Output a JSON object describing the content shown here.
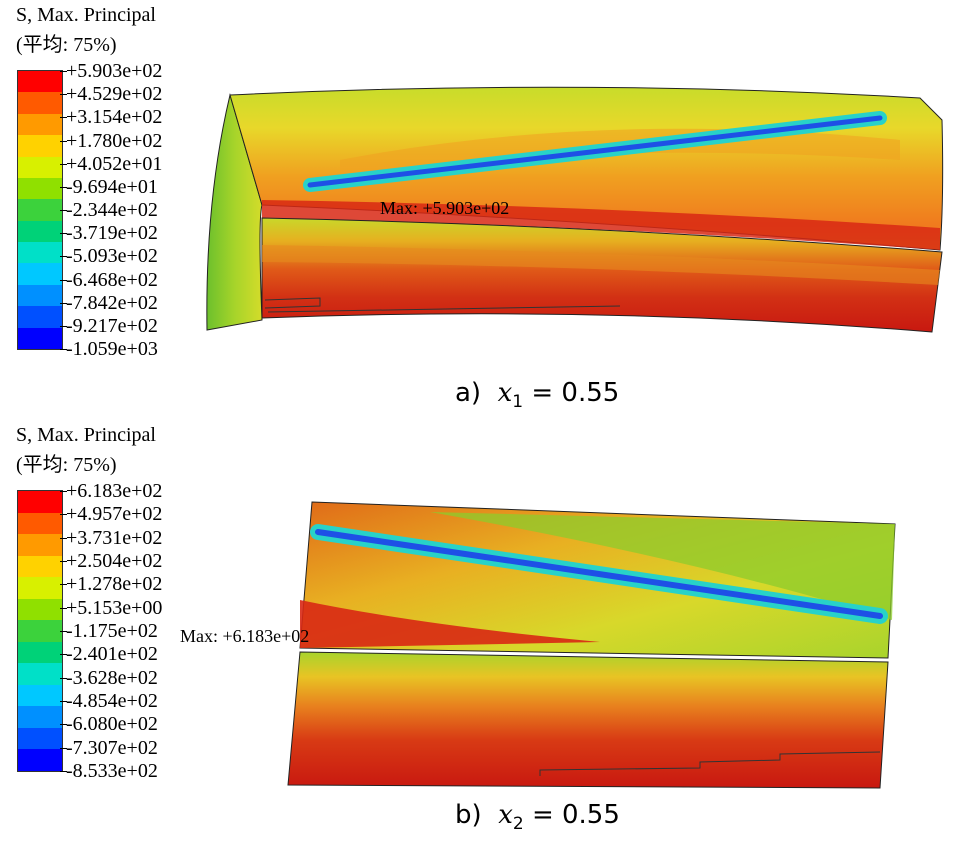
{
  "panels": [
    {
      "legend": {
        "title": "S, Max. Principal",
        "avg": "(平均: 75%)",
        "labels": [
          "+5.903e+02",
          "+4.529e+02",
          "+3.154e+02",
          "+1.780e+02",
          "+4.052e+01",
          "-9.694e+01",
          "-2.344e+02",
          "-3.719e+02",
          "-5.093e+02",
          "-6.468e+02",
          "-7.842e+02",
          "-9.217e+02",
          "-1.059e+03"
        ]
      },
      "max_label": "Max: +5.903e+02",
      "caption": {
        "prefix": "a)",
        "var": "x",
        "sub": "1",
        "rest": " = 0.55"
      }
    },
    {
      "legend": {
        "title": "S, Max. Principal",
        "avg": "(平均: 75%)",
        "labels": [
          "+6.183e+02",
          "+4.957e+02",
          "+3.731e+02",
          "+2.504e+02",
          "+1.278e+02",
          "+5.153e+00",
          "-1.175e+02",
          "-2.401e+02",
          "-3.628e+02",
          "-4.854e+02",
          "-6.080e+02",
          "-7.307e+02",
          "-8.533e+02"
        ]
      },
      "max_label": "Max: +6.183e+02",
      "caption": {
        "prefix": "b)",
        "var": "x",
        "sub": "2",
        "rest": " = 0.55"
      }
    }
  ],
  "colors": {
    "scale": [
      "#ff0000",
      "#ff5a00",
      "#ff9a00",
      "#ffd200",
      "#d8f000",
      "#90e000",
      "#3cd23c",
      "#00d278",
      "#00e0c8",
      "#00c8ff",
      "#0090ff",
      "#0050ff",
      "#0000ff"
    ],
    "red": "#d11a10",
    "orange": "#f08a1e",
    "yellow": "#e8d82a",
    "yellow_green": "#c8dc2a",
    "green": "#8ccc2c",
    "cyan": "#28d2c8",
    "blue": "#1e50e6"
  }
}
